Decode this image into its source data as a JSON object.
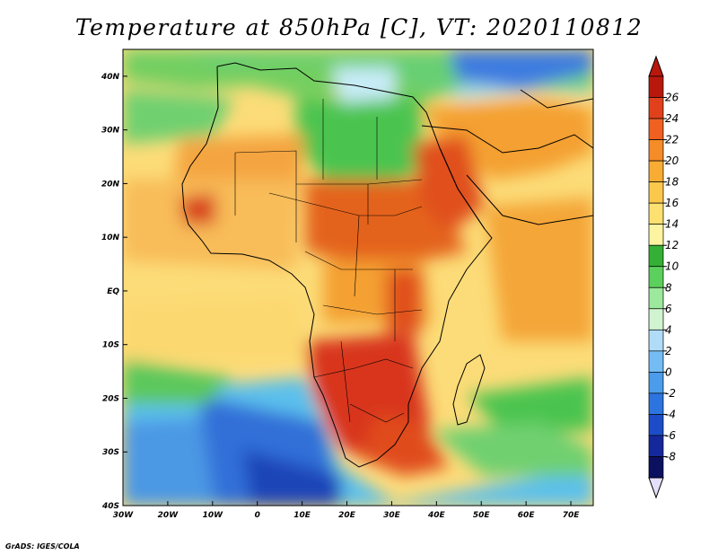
{
  "title": "Temperature at 850hPa [C], VT: 2020110812",
  "credit": "GrADS: IGES/COLA",
  "map": {
    "lon_ticks": [
      "30W",
      "20W",
      "10W",
      "0",
      "10E",
      "20E",
      "30E",
      "40E",
      "50E",
      "60E",
      "70E"
    ],
    "lat_ticks": [
      "40N",
      "30N",
      "20N",
      "10N",
      "EQ",
      "10S",
      "20S",
      "30S",
      "40S"
    ],
    "lon_range": [
      -30,
      75
    ],
    "lat_range": [
      -40,
      45
    ],
    "colors": {
      "cold_blue": "#4fa8f0",
      "green": "#4cc94c",
      "yellow": "#f8dc6c",
      "orange": "#f4a030",
      "hot_red": "#d8341c"
    }
  },
  "colorbar": {
    "labels": [
      "26",
      "24",
      "22",
      "20",
      "18",
      "16",
      "14",
      "12",
      "10",
      "8",
      "6",
      "4",
      "2",
      "0",
      "-2",
      "-4",
      "-6",
      "-8"
    ],
    "colors": [
      "#b8180c",
      "#e0401c",
      "#f06020",
      "#f48c28",
      "#f8ac34",
      "#fcc84c",
      "#fce070",
      "#fcf4a0",
      "#34b034",
      "#5cd05c",
      "#9ce89c",
      "#d0f4d0",
      "#b0dcf8",
      "#74bcf4",
      "#4c9cec",
      "#2c74e0",
      "#1c4cc8",
      "#14289c",
      "#0c1060"
    ],
    "bottom_color": "#e4e0fc"
  }
}
